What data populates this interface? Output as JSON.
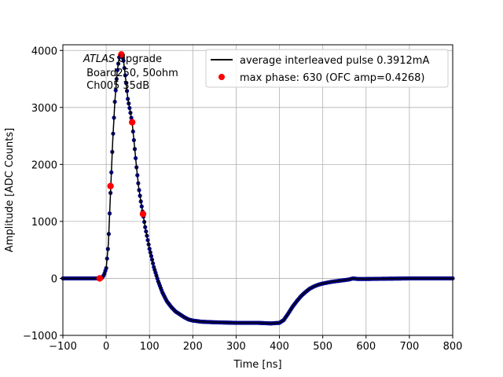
{
  "chart_data": {
    "type": "scatter",
    "xlabel": "Time [ns]",
    "ylabel": "Amplitude [ADC Counts]",
    "xlim": [
      -100,
      800
    ],
    "ylim": [
      -1000,
      4100
    ],
    "xticks": [
      -100,
      0,
      100,
      200,
      300,
      400,
      500,
      600,
      700,
      800
    ],
    "yticks": [
      -1000,
      0,
      1000,
      2000,
      3000,
      4000
    ],
    "xtick_labels": [
      "−100",
      "0",
      "100",
      "200",
      "300",
      "400",
      "500",
      "600",
      "700",
      "800"
    ],
    "ytick_labels": [
      "−1000",
      "0",
      "1000",
      "2000",
      "3000",
      "4000"
    ],
    "grid": true,
    "legend_position": "top-right",
    "annotation": {
      "line1_italic": "ATLAS",
      "line1_rest": " Upgrade",
      "line2": " Board250, 50ohm",
      "line3": " Ch005 35dB"
    },
    "series": [
      {
        "name": "average interleaved pulse 0.3912mA",
        "style": "line",
        "color": "#000000",
        "marker_color": "#00008b",
        "x": [
          -100,
          -20,
          -10,
          -5,
          0,
          5,
          10,
          15,
          20,
          25,
          30,
          35,
          40,
          45,
          50,
          55,
          60,
          65,
          70,
          75,
          80,
          85,
          90,
          100,
          110,
          120,
          130,
          140,
          150,
          160,
          170,
          180,
          190,
          200,
          220,
          250,
          300,
          350,
          380,
          400,
          410,
          420,
          430,
          440,
          450,
          460,
          470,
          480,
          490,
          500,
          520,
          540,
          560,
          570,
          580,
          600,
          650,
          700,
          750,
          800
        ],
        "y": [
          0,
          0,
          10,
          60,
          180,
          600,
          1500,
          2400,
          3100,
          3600,
          3880,
          3950,
          3820,
          3500,
          3150,
          2950,
          2730,
          2350,
          1950,
          1600,
          1350,
          1130,
          900,
          520,
          200,
          -50,
          -250,
          -400,
          -500,
          -580,
          -630,
          -680,
          -720,
          -740,
          -760,
          -770,
          -780,
          -780,
          -790,
          -780,
          -730,
          -620,
          -500,
          -400,
          -310,
          -240,
          -180,
          -140,
          -110,
          -90,
          -60,
          -40,
          -20,
          0,
          -10,
          -10,
          -5,
          0,
          0,
          0
        ]
      },
      {
        "name": "max phase: 630 (OFC amp=0.4268)",
        "style": "points",
        "color": "#ff0000",
        "x": [
          -15,
          10,
          35,
          60,
          85
        ],
        "y": [
          0,
          1620,
          3930,
          2740,
          1130
        ]
      }
    ]
  }
}
